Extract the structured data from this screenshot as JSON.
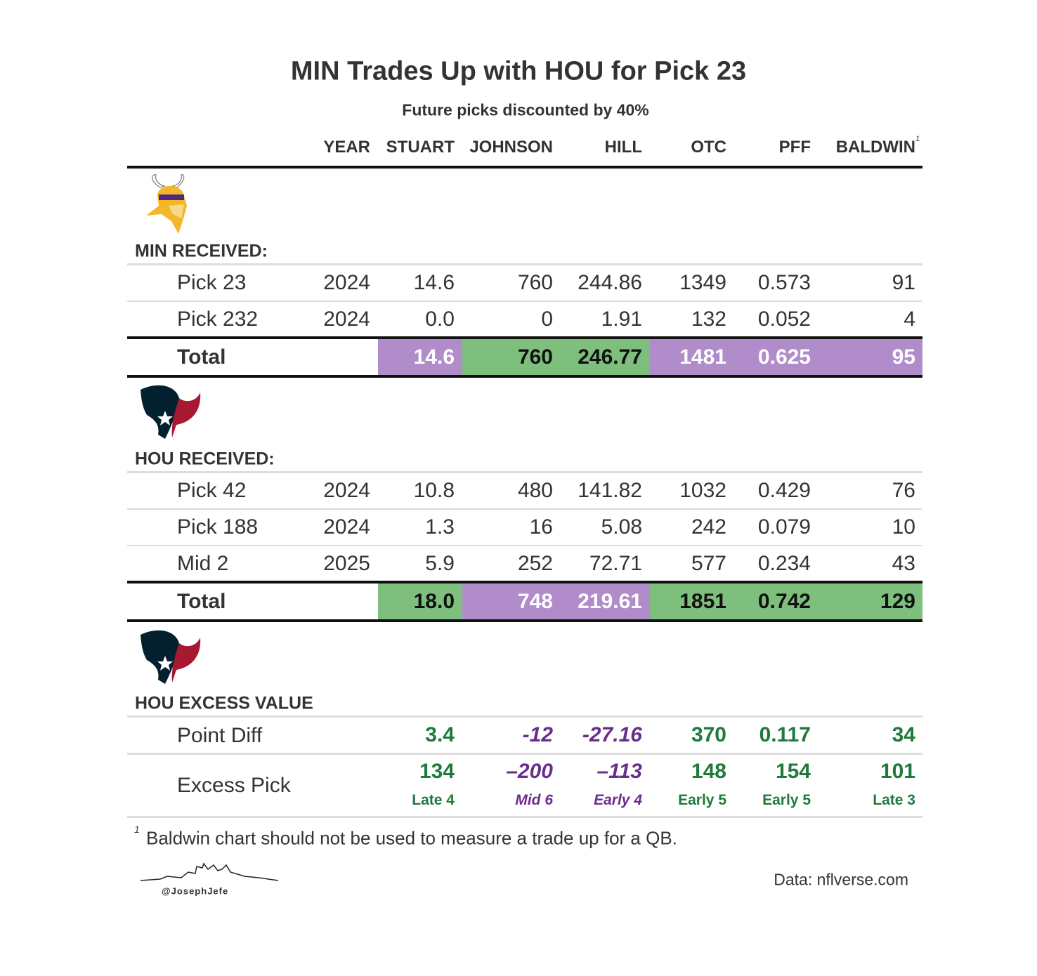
{
  "header": {
    "title": "MIN Trades Up with HOU for Pick 23",
    "subtitle": "Future picks discounted by 40%"
  },
  "columns": [
    "YEAR",
    "STUART",
    "JOHNSON",
    "HILL",
    "OTC",
    "PFF",
    "BALDWIN"
  ],
  "column_note": "1",
  "sections": [
    {
      "label": "MIN RECEIVED:",
      "rows": [
        [
          "Pick 23",
          "2024",
          "14.6",
          "760",
          "244.86",
          "1349",
          "0.573",
          "91"
        ],
        [
          "Pick 232",
          "2024",
          "0.0",
          "0",
          "1.91",
          "132",
          "0.052",
          "4"
        ]
      ],
      "total": {
        "label": "Total",
        "cells": [
          {
            "value": "14.6",
            "fill": "#b18ccb",
            "color": "#ffffff"
          },
          {
            "value": "760",
            "fill": "#7ebf7e",
            "color": "#111111"
          },
          {
            "value": "246.77",
            "fill": "#7ebf7e",
            "color": "#111111"
          },
          {
            "value": "1481",
            "fill": "#b18ccb",
            "color": "#ffffff"
          },
          {
            "value": "0.625",
            "fill": "#b18ccb",
            "color": "#ffffff"
          },
          {
            "value": "95",
            "fill": "#b18ccb",
            "color": "#ffffff"
          }
        ]
      }
    },
    {
      "label": "HOU RECEIVED:",
      "rows": [
        [
          "Pick 42",
          "2024",
          "10.8",
          "480",
          "141.82",
          "1032",
          "0.429",
          "76"
        ],
        [
          "Pick 188",
          "2024",
          "1.3",
          "16",
          "5.08",
          "242",
          "0.079",
          "10"
        ],
        [
          "Mid 2",
          "2025",
          "5.9",
          "252",
          "72.71",
          "577",
          "0.234",
          "43"
        ]
      ],
      "total": {
        "label": "Total",
        "cells": [
          {
            "value": "18.0",
            "fill": "#7ebf7e",
            "color": "#111111"
          },
          {
            "value": "748",
            "fill": "#b18ccb",
            "color": "#ffffff"
          },
          {
            "value": "219.61",
            "fill": "#b18ccb",
            "color": "#ffffff"
          },
          {
            "value": "1851",
            "fill": "#7ebf7e",
            "color": "#111111"
          },
          {
            "value": "0.742",
            "fill": "#7ebf7e",
            "color": "#111111"
          },
          {
            "value": "129",
            "fill": "#7ebf7e",
            "color": "#111111"
          }
        ]
      }
    }
  ],
  "excess": {
    "label": "HOU EXCESS VALUE",
    "rows": [
      {
        "label": "Point Diff",
        "cells": [
          {
            "value": "3.4",
            "color": "#1f7a3c",
            "italic": false
          },
          {
            "value": "-12",
            "color": "#6b2d8c",
            "italic": true
          },
          {
            "value": "-27.16",
            "color": "#6b2d8c",
            "italic": true
          },
          {
            "value": "370",
            "color": "#1f7a3c",
            "italic": false
          },
          {
            "value": "0.117",
            "color": "#1f7a3c",
            "italic": false
          },
          {
            "value": "34",
            "color": "#1f7a3c",
            "italic": false
          }
        ]
      },
      {
        "label": "Excess Pick",
        "cells": [
          {
            "value": "134",
            "sub": "Late 4",
            "color": "#1f7a3c",
            "italic": false
          },
          {
            "value": "–200",
            "sub": "Mid 6",
            "color": "#6b2d8c",
            "italic": true
          },
          {
            "value": "–113",
            "sub": "Early 4",
            "color": "#6b2d8c",
            "italic": true
          },
          {
            "value": "148",
            "sub": "Early 5",
            "color": "#1f7a3c",
            "italic": false
          },
          {
            "value": "154",
            "sub": "Early 5",
            "color": "#1f7a3c",
            "italic": false
          },
          {
            "value": "101",
            "sub": "Late 3",
            "color": "#1f7a3c",
            "italic": false
          }
        ]
      }
    ]
  },
  "footnote": {
    "marker": "1",
    "text": "Baldwin chart should not be used to measure a trade up for a QB."
  },
  "credit": "@JosephJefe",
  "source": "Data: nflverse.com"
}
